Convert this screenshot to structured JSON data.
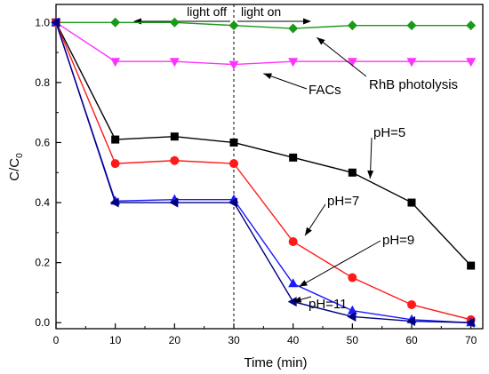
{
  "chart_data": {
    "type": "line",
    "xlabel": "Time (min)",
    "ylabel_main": "C/C",
    "ylabel_sub": "0",
    "xlim": [
      0,
      72
    ],
    "ylim": [
      -0.02,
      1.06
    ],
    "x_ticks": [
      0,
      10,
      20,
      30,
      40,
      50,
      60,
      70
    ],
    "y_ticks": [
      0.0,
      0.2,
      0.4,
      0.6,
      0.8,
      1.0
    ],
    "grid": false,
    "divider": {
      "x": 30,
      "left_label": "light off",
      "right_label": "light on"
    },
    "series": [
      {
        "name": "RhB photolysis",
        "color": "#1a9a1a",
        "marker": "diamond",
        "x": [
          0,
          10,
          20,
          30,
          40,
          50,
          60,
          70
        ],
        "y": [
          1.0,
          1.0,
          1.0,
          0.99,
          0.98,
          0.99,
          0.99,
          0.99
        ]
      },
      {
        "name": "FACs",
        "color": "#ff33ff",
        "marker": "triangle-down",
        "x": [
          0,
          10,
          20,
          30,
          40,
          50,
          60,
          70
        ],
        "y": [
          1.0,
          0.87,
          0.87,
          0.86,
          0.87,
          0.87,
          0.87,
          0.87
        ]
      },
      {
        "name": "pH=5",
        "color": "#000000",
        "marker": "square",
        "x": [
          0,
          10,
          20,
          30,
          40,
          50,
          60,
          70
        ],
        "y": [
          1.0,
          0.61,
          0.62,
          0.6,
          0.55,
          0.5,
          0.4,
          0.19
        ]
      },
      {
        "name": "pH=7",
        "color": "#ff1a1a",
        "marker": "circle",
        "x": [
          0,
          10,
          20,
          30,
          40,
          50,
          60,
          70
        ],
        "y": [
          1.0,
          0.53,
          0.54,
          0.53,
          0.27,
          0.15,
          0.06,
          0.01
        ]
      },
      {
        "name": "pH=9",
        "color": "#1a1aff",
        "marker": "triangle-up",
        "x": [
          0,
          10,
          20,
          30,
          40,
          50,
          60,
          70
        ],
        "y": [
          1.0,
          0.405,
          0.41,
          0.41,
          0.13,
          0.04,
          0.01,
          0.0
        ]
      },
      {
        "name": "pH=11",
        "color": "#000080",
        "marker": "triangle-left",
        "x": [
          0,
          10,
          20,
          30,
          40,
          50,
          60,
          70
        ],
        "y": [
          1.0,
          0.4,
          0.4,
          0.4,
          0.07,
          0.02,
          0.005,
          0.0
        ]
      }
    ],
    "annotations": [
      {
        "text": "RhB photolysis",
        "target_x": 44,
        "target_y": 0.95
      },
      {
        "text": "FACs",
        "target_x": 35,
        "target_y": 0.83
      },
      {
        "text": "pH=5",
        "target_x": 53,
        "target_y": 0.48
      },
      {
        "text": "pH=7",
        "target_x": 42,
        "target_y": 0.29
      },
      {
        "text": "pH=9",
        "target_x": 41,
        "target_y": 0.12
      },
      {
        "text": "pH=11",
        "target_x": 40,
        "target_y": 0.07
      }
    ]
  }
}
